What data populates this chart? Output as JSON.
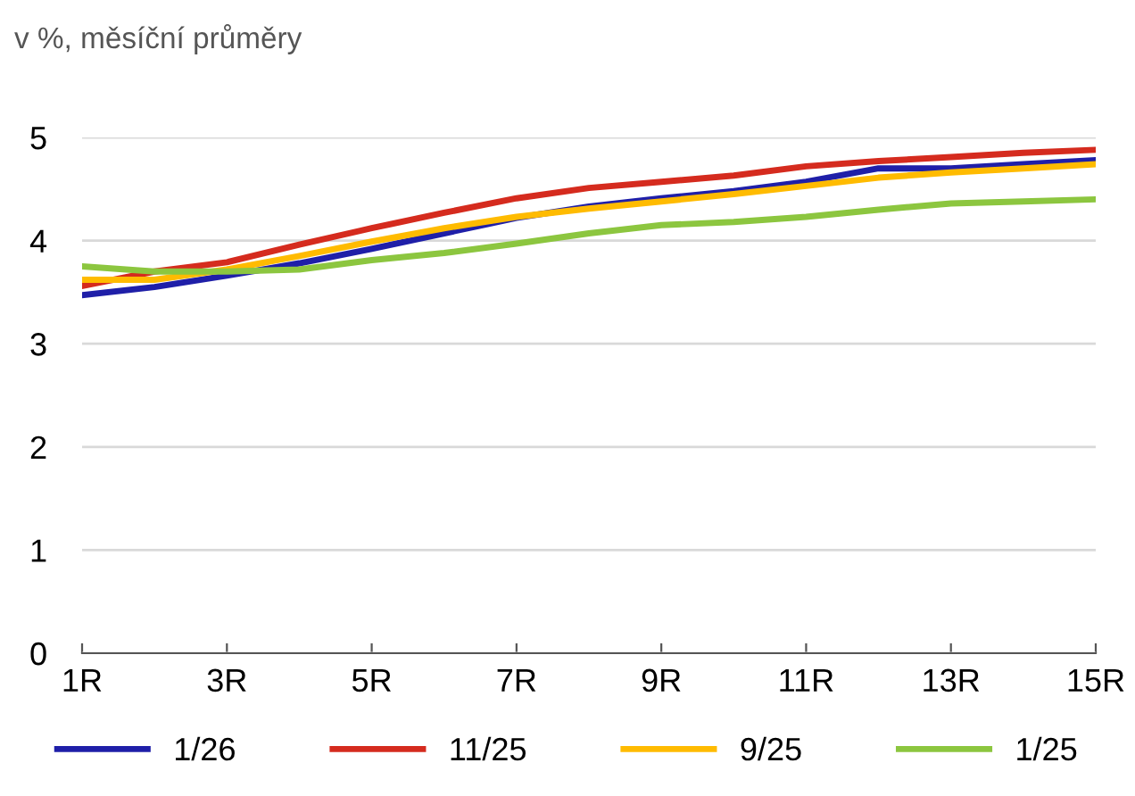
{
  "chart_data": {
    "type": "line",
    "ylabel": "v %, měsíční průměry",
    "x": [
      1,
      2,
      3,
      4,
      5,
      6,
      7,
      8,
      9,
      10,
      11,
      12,
      13,
      14,
      15
    ],
    "xlim": [
      1,
      15
    ],
    "xticks": [
      {
        "value": 1,
        "label": "1R"
      },
      {
        "value": 3,
        "label": "3R"
      },
      {
        "value": 5,
        "label": "5R"
      },
      {
        "value": 7,
        "label": "7R"
      },
      {
        "value": 9,
        "label": "9R"
      },
      {
        "value": 11,
        "label": "11R"
      },
      {
        "value": 13,
        "label": "13R"
      },
      {
        "value": 15,
        "label": "15R"
      }
    ],
    "ylim": [
      0,
      5
    ],
    "yticks": [
      0,
      1,
      2,
      3,
      4,
      5
    ],
    "grid": "y",
    "legend": "bottom",
    "marker": "none",
    "line_style": "solid",
    "series": [
      {
        "name": "1/26",
        "color": "#1f1fa8",
        "values": [
          3.47,
          3.55,
          3.66,
          3.78,
          3.92,
          4.07,
          4.22,
          4.33,
          4.41,
          4.48,
          4.57,
          4.7,
          4.7,
          4.74,
          4.78
        ]
      },
      {
        "name": "11/25",
        "color": "#d52b1e",
        "values": [
          3.56,
          3.7,
          3.79,
          3.96,
          4.12,
          4.27,
          4.41,
          4.51,
          4.57,
          4.63,
          4.72,
          4.77,
          4.81,
          4.85,
          4.88
        ]
      },
      {
        "name": "9/25",
        "color": "#ffbb00",
        "values": [
          3.62,
          3.62,
          3.72,
          3.85,
          3.99,
          4.12,
          4.23,
          4.31,
          4.38,
          4.45,
          4.53,
          4.61,
          4.66,
          4.7,
          4.74
        ]
      },
      {
        "name": "1/25",
        "color": "#8cc63f",
        "values": [
          3.75,
          3.7,
          3.7,
          3.72,
          3.81,
          3.88,
          3.97,
          4.07,
          4.15,
          4.18,
          4.23,
          4.3,
          4.36,
          4.38,
          4.4
        ]
      }
    ]
  }
}
